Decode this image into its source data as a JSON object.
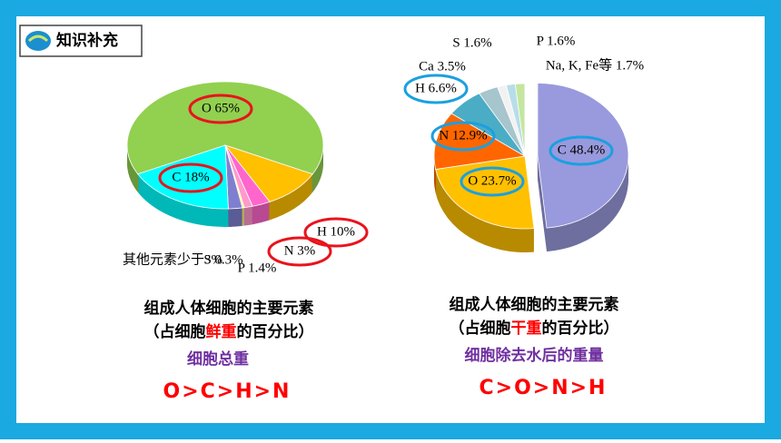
{
  "header": {
    "title": "知识补充"
  },
  "chart_data": [
    {
      "type": "pie",
      "categories": [
        "O 65%",
        "H 10%",
        "N 3%",
        "P 1.4%",
        "S 0.3%",
        "其他元素少于3%",
        "C 18%"
      ],
      "values": [
        65,
        10,
        3,
        1.4,
        0.3,
        2.3,
        18
      ],
      "colors": [
        "#92d050",
        "#ffc000",
        "#ff66cc",
        "#ff99cc",
        "#ffff66",
        "#7f7fd0",
        "#00ffff"
      ],
      "title": "组成人体细胞的主要元素",
      "subtitle": [
        "（占细胞",
        "鲜重",
        "的百分比）"
      ],
      "note": "细胞总重",
      "order": "O>C>H>N"
    },
    {
      "type": "pie",
      "categories": [
        "C 48.4%",
        "O 23.7%",
        "N 12.9%",
        "H 6.6%",
        "Ca 3.5%",
        "S 1.6%",
        "P 1.6%",
        "Na, K, Fe等 1.7%"
      ],
      "values": [
        48.4,
        23.7,
        12.9,
        6.6,
        3.5,
        1.6,
        1.6,
        1.7
      ],
      "colors": [
        "#9999dd",
        "#ffc000",
        "#ff6600",
        "#4bacc6",
        "#a6c5cc",
        "#f2f2f2",
        "#b7dee8",
        "#c4e6a0"
      ],
      "title": "组成人体细胞的主要元素",
      "subtitle": [
        "（占细胞",
        "干重",
        "的百分比）"
      ],
      "note": "细胞除去水后的重量",
      "order": "C>O>N>H"
    }
  ]
}
